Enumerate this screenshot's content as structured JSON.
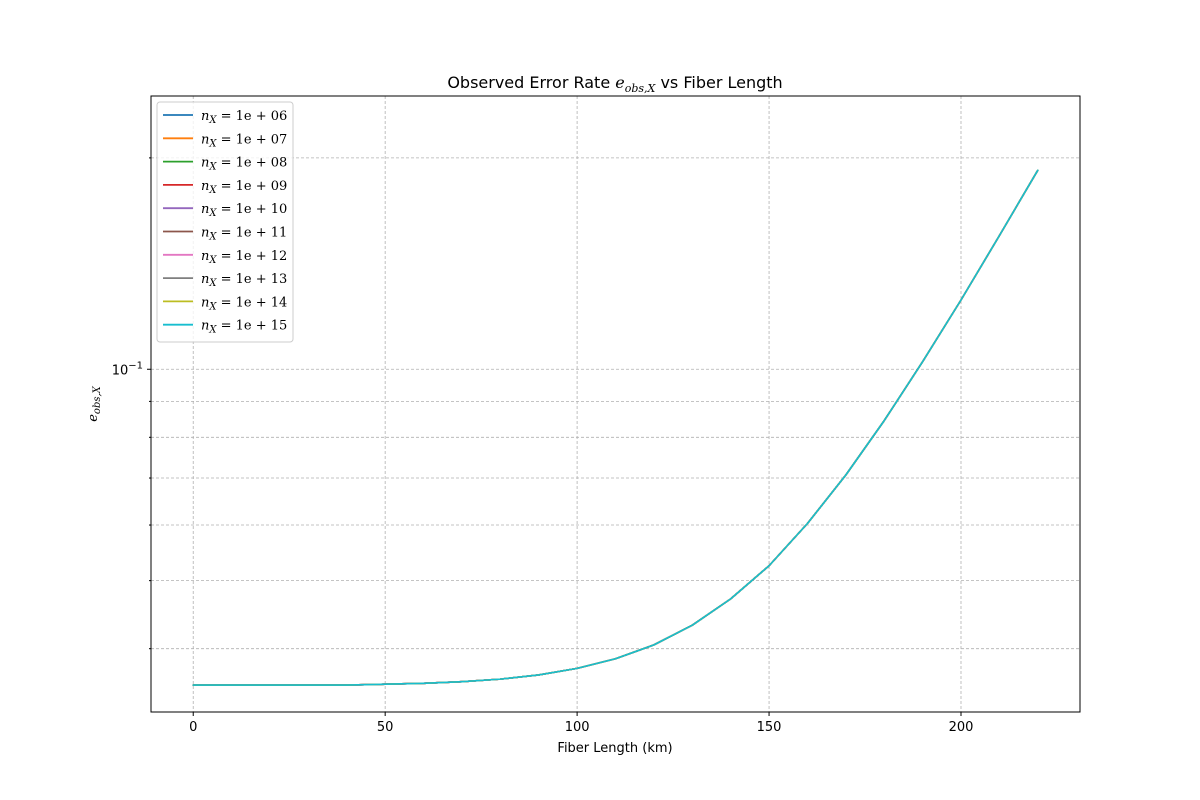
{
  "chart_data": {
    "type": "line",
    "title": {
      "prefix": "Observed Error Rate ",
      "symbol": "e",
      "subscript": "obs,X",
      "suffix": " vs Fiber Length"
    },
    "xlabel": "Fiber Length (km)",
    "ylabel": {
      "symbol": "e",
      "subscript": "obs,X"
    },
    "yscale": "log",
    "xlim": [
      -11,
      231
    ],
    "ylim": [
      0.0325,
      0.245
    ],
    "xticks": [
      0,
      50,
      100,
      150,
      200
    ],
    "xtick_labels": [
      "0",
      "50",
      "100",
      "150",
      "200"
    ],
    "yticks_major": [
      0.1
    ],
    "ytick_major_labels": [
      {
        "base": "10",
        "exp": "−1"
      }
    ],
    "yticks_minor": [
      0.04,
      0.05,
      0.06,
      0.07,
      0.08,
      0.09,
      0.2
    ],
    "grid": true,
    "legend_position": "upper left",
    "x": [
      0,
      10,
      20,
      30,
      40,
      50,
      60,
      70,
      80,
      90,
      100,
      110,
      120,
      130,
      140,
      150,
      160,
      170,
      180,
      190,
      200,
      210,
      220
    ],
    "series": [
      {
        "name": {
          "sym": "n",
          "sub": "X",
          "eq": " = 1e + 06"
        },
        "color": "#1f77b4",
        "values": [
          0.0355,
          0.0355,
          0.0355,
          0.0355,
          0.0355,
          0.0356,
          0.0357,
          0.0359,
          0.0362,
          0.0367,
          0.0375,
          0.0387,
          0.0405,
          0.0432,
          0.0471,
          0.0525,
          0.0603,
          0.0707,
          0.0845,
          0.1025,
          0.1255,
          0.155,
          0.192
        ]
      },
      {
        "name": {
          "sym": "n",
          "sub": "X",
          "eq": " = 1e + 07"
        },
        "color": "#ff7f0e",
        "values": [
          0.0355,
          0.0355,
          0.0355,
          0.0355,
          0.0355,
          0.0356,
          0.0357,
          0.0359,
          0.0362,
          0.0367,
          0.0375,
          0.0387,
          0.0405,
          0.0432,
          0.0471,
          0.0525,
          0.0603,
          0.0707,
          0.0845,
          0.1025,
          0.1255,
          0.155,
          0.192
        ]
      },
      {
        "name": {
          "sym": "n",
          "sub": "X",
          "eq": " = 1e + 08"
        },
        "color": "#2ca02c",
        "values": [
          0.0355,
          0.0355,
          0.0355,
          0.0355,
          0.0355,
          0.0356,
          0.0357,
          0.0359,
          0.0362,
          0.0367,
          0.0375,
          0.0387,
          0.0405,
          0.0432,
          0.0471,
          0.0525,
          0.0603,
          0.0707,
          0.0845,
          0.1025,
          0.1255,
          0.155,
          0.192
        ]
      },
      {
        "name": {
          "sym": "n",
          "sub": "X",
          "eq": " = 1e + 09"
        },
        "color": "#d62728",
        "values": [
          0.0355,
          0.0355,
          0.0355,
          0.0355,
          0.0355,
          0.0356,
          0.0357,
          0.0359,
          0.0362,
          0.0367,
          0.0375,
          0.0387,
          0.0405,
          0.0432,
          0.0471,
          0.0525,
          0.0603,
          0.0707,
          0.0845,
          0.1025,
          0.1255,
          0.155,
          0.192
        ]
      },
      {
        "name": {
          "sym": "n",
          "sub": "X",
          "eq": " = 1e + 10"
        },
        "color": "#9467bd",
        "values": [
          0.0355,
          0.0355,
          0.0355,
          0.0355,
          0.0355,
          0.0356,
          0.0357,
          0.0359,
          0.0362,
          0.0367,
          0.0375,
          0.0387,
          0.0405,
          0.0432,
          0.0471,
          0.0525,
          0.0603,
          0.0707,
          0.0845,
          0.1025,
          0.1255,
          0.155,
          0.192
        ]
      },
      {
        "name": {
          "sym": "n",
          "sub": "X",
          "eq": " = 1e + 11"
        },
        "color": "#8c564b",
        "values": [
          0.0355,
          0.0355,
          0.0355,
          0.0355,
          0.0355,
          0.0356,
          0.0357,
          0.0359,
          0.0362,
          0.0367,
          0.0375,
          0.0387,
          0.0405,
          0.0432,
          0.0471,
          0.0525,
          0.0603,
          0.0707,
          0.0845,
          0.1025,
          0.1255,
          0.155,
          0.192
        ]
      },
      {
        "name": {
          "sym": "n",
          "sub": "X",
          "eq": " = 1e + 12"
        },
        "color": "#e377c2",
        "values": [
          0.0355,
          0.0355,
          0.0355,
          0.0355,
          0.0355,
          0.0356,
          0.0357,
          0.0359,
          0.0362,
          0.0367,
          0.0375,
          0.0387,
          0.0405,
          0.0432,
          0.0471,
          0.0525,
          0.0603,
          0.0707,
          0.0845,
          0.1025,
          0.1255,
          0.155,
          0.192
        ]
      },
      {
        "name": {
          "sym": "n",
          "sub": "X",
          "eq": " = 1e + 13"
        },
        "color": "#7f7f7f",
        "values": [
          0.0355,
          0.0355,
          0.0355,
          0.0355,
          0.0355,
          0.0356,
          0.0357,
          0.0359,
          0.0362,
          0.0367,
          0.0375,
          0.0387,
          0.0405,
          0.0432,
          0.0471,
          0.0525,
          0.0603,
          0.0707,
          0.0845,
          0.1025,
          0.1255,
          0.155,
          0.192
        ]
      },
      {
        "name": {
          "sym": "n",
          "sub": "X",
          "eq": " = 1e + 14"
        },
        "color": "#bcbd22",
        "values": [
          0.0355,
          0.0355,
          0.0355,
          0.0355,
          0.0355,
          0.0356,
          0.0357,
          0.0359,
          0.0362,
          0.0367,
          0.0375,
          0.0387,
          0.0405,
          0.0432,
          0.0471,
          0.0525,
          0.0603,
          0.0707,
          0.0845,
          0.1025,
          0.1255,
          0.155,
          0.192
        ]
      },
      {
        "name": {
          "sym": "n",
          "sub": "X",
          "eq": " = 1e + 15"
        },
        "color": "#17becf",
        "values": [
          0.0355,
          0.0355,
          0.0355,
          0.0355,
          0.0355,
          0.0356,
          0.0357,
          0.0359,
          0.0362,
          0.0367,
          0.0375,
          0.0387,
          0.0405,
          0.0432,
          0.0471,
          0.0525,
          0.0603,
          0.0707,
          0.0845,
          0.1025,
          0.1255,
          0.155,
          0.192
        ]
      }
    ]
  }
}
